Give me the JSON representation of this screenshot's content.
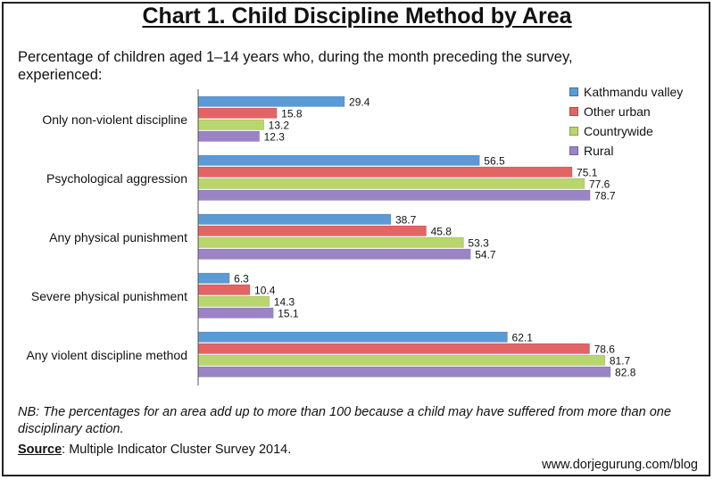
{
  "title": "Chart 1. Child Discipline Method by Area",
  "subtitle": "Percentage of children aged 1–14 years who, during the month preceding the survey, experienced:",
  "note": "NB: The percentages for an area add up to more than 100 because a child may have suffered from more than one disciplinary action.",
  "source": {
    "label": "Source",
    "text": ": Multiple Indicator Cluster Survey 2014."
  },
  "credit": "www.dorjegurung.com/blog",
  "chart_data": {
    "type": "bar",
    "orientation": "horizontal",
    "categories": [
      "Only non-violent discipline",
      "Psychological aggression",
      "Any physical punishment",
      "Severe physical punishment",
      "Any violent discipline method"
    ],
    "series": [
      {
        "name": "Kathmandu valley",
        "color": "#5b9bd5",
        "values": [
          29.4,
          56.5,
          38.7,
          6.3,
          62.1
        ]
      },
      {
        "name": "Other urban",
        "color": "#e36464",
        "values": [
          15.8,
          75.1,
          45.8,
          10.4,
          78.6
        ]
      },
      {
        "name": "Countrywide",
        "color": "#b9d66e",
        "values": [
          13.2,
          77.6,
          53.3,
          14.3,
          81.7
        ]
      },
      {
        "name": "Rural",
        "color": "#9b84c6",
        "values": [
          12.3,
          78.7,
          54.7,
          15.1,
          82.8
        ]
      }
    ],
    "xlim": [
      0,
      100
    ],
    "grid": false,
    "legend_position": "top-right"
  }
}
